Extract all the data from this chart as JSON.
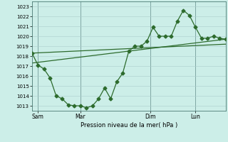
{
  "title": "",
  "xlabel": "Pression niveau de la mer( hPa )",
  "background_color": "#cceee8",
  "grid_color": "#aacccc",
  "line_color": "#2d6b2d",
  "dark_line_color": "#1a4a1a",
  "ylim": [
    1012.5,
    1023.5
  ],
  "yticks": [
    1013,
    1014,
    1015,
    1016,
    1017,
    1018,
    1019,
    1020,
    1021,
    1022,
    1023
  ],
  "day_labels": [
    "Sam",
    "Mar",
    "Dim",
    "Lun"
  ],
  "series1_x": [
    0,
    1,
    2,
    3,
    4,
    5,
    6,
    7,
    8,
    9,
    10,
    11,
    12,
    13,
    14,
    15,
    16,
    17,
    18,
    19,
    20,
    21,
    22,
    23,
    24,
    25,
    26,
    27,
    28,
    29,
    30,
    31,
    32
  ],
  "series1_y": [
    1018.3,
    1017.1,
    1016.7,
    1015.8,
    1014.0,
    1013.7,
    1013.1,
    1013.0,
    1013.0,
    1012.8,
    1013.0,
    1013.7,
    1014.8,
    1013.7,
    1015.4,
    1016.3,
    1018.5,
    1019.0,
    1019.0,
    1019.5,
    1020.9,
    1020.0,
    1020.0,
    1020.0,
    1021.5,
    1022.6,
    1022.1,
    1020.9,
    1019.8,
    1019.8,
    1020.0,
    1019.8,
    1019.7
  ],
  "series2_x": [
    0,
    32
  ],
  "series2_y": [
    1017.3,
    1019.7
  ],
  "series3_x": [
    0,
    32
  ],
  "series3_y": [
    1018.3,
    1019.2
  ],
  "xlim": [
    0,
    32
  ],
  "figsize": [
    3.2,
    2.0
  ],
  "dpi": 100
}
